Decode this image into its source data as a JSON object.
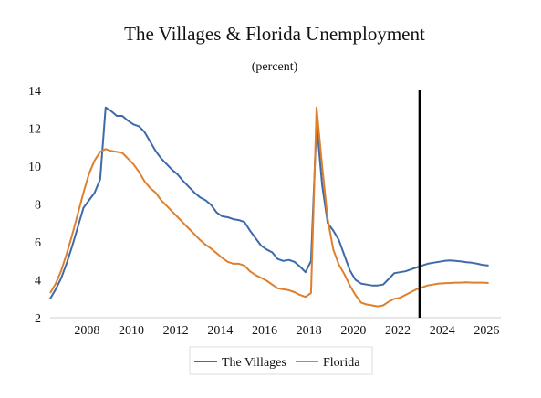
{
  "chart_data": {
    "type": "line",
    "title": "The Villages & Florida Unemployment",
    "subtitle": "(percent)",
    "xlabel": "",
    "ylabel": "",
    "xlim": [
      2007.0,
      2027.3
    ],
    "ylim": [
      2,
      14
    ],
    "x_ticks": [
      2008,
      2010,
      2012,
      2014,
      2016,
      2018,
      2020,
      2022,
      2024,
      2026
    ],
    "y_ticks": [
      2,
      4,
      6,
      8,
      10,
      12,
      14
    ],
    "grid": false,
    "legend_position": "bottom-center",
    "vertical_marker_x": 2023.65,
    "series": [
      {
        "name": "The Villages",
        "color": "#3d6aa8",
        "points": [
          [
            2007.0,
            3.0
          ],
          [
            2007.25,
            3.5
          ],
          [
            2007.5,
            4.1
          ],
          [
            2007.75,
            4.9
          ],
          [
            2008.0,
            5.8
          ],
          [
            2008.25,
            6.8
          ],
          [
            2008.5,
            7.8
          ],
          [
            2008.75,
            8.2
          ],
          [
            2009.0,
            8.6
          ],
          [
            2009.25,
            9.3
          ],
          [
            2009.5,
            13.1
          ],
          [
            2009.75,
            12.9
          ],
          [
            2010.0,
            12.65
          ],
          [
            2010.25,
            12.65
          ],
          [
            2010.5,
            12.4
          ],
          [
            2010.75,
            12.2
          ],
          [
            2011.0,
            12.1
          ],
          [
            2011.25,
            11.8
          ],
          [
            2011.5,
            11.3
          ],
          [
            2011.75,
            10.8
          ],
          [
            2012.0,
            10.4
          ],
          [
            2012.25,
            10.1
          ],
          [
            2012.5,
            9.8
          ],
          [
            2012.75,
            9.55
          ],
          [
            2013.0,
            9.2
          ],
          [
            2013.25,
            8.9
          ],
          [
            2013.5,
            8.6
          ],
          [
            2013.75,
            8.35
          ],
          [
            2014.0,
            8.2
          ],
          [
            2014.25,
            7.95
          ],
          [
            2014.5,
            7.55
          ],
          [
            2014.75,
            7.35
          ],
          [
            2015.0,
            7.3
          ],
          [
            2015.25,
            7.2
          ],
          [
            2015.5,
            7.15
          ],
          [
            2015.75,
            7.05
          ],
          [
            2016.0,
            6.6
          ],
          [
            2016.25,
            6.2
          ],
          [
            2016.5,
            5.8
          ],
          [
            2016.75,
            5.6
          ],
          [
            2017.0,
            5.45
          ],
          [
            2017.25,
            5.1
          ],
          [
            2017.5,
            5.0
          ],
          [
            2017.75,
            5.05
          ],
          [
            2018.0,
            4.95
          ],
          [
            2018.25,
            4.7
          ],
          [
            2018.5,
            4.4
          ],
          [
            2018.75,
            5.0
          ],
          [
            2019.0,
            12.3
          ],
          [
            2019.25,
            9.0
          ],
          [
            2019.5,
            7.0
          ],
          [
            2019.75,
            6.6
          ],
          [
            2020.0,
            6.1
          ],
          [
            2020.25,
            5.3
          ],
          [
            2020.5,
            4.5
          ],
          [
            2020.75,
            4.0
          ],
          [
            2021.0,
            3.8
          ],
          [
            2021.25,
            3.75
          ],
          [
            2021.5,
            3.7
          ],
          [
            2021.75,
            3.7
          ],
          [
            2022.0,
            3.75
          ],
          [
            2022.25,
            4.05
          ],
          [
            2022.5,
            4.35
          ],
          [
            2022.75,
            4.4
          ],
          [
            2023.0,
            4.45
          ],
          [
            2023.25,
            4.55
          ],
          [
            2023.5,
            4.65
          ],
          [
            2023.75,
            4.75
          ],
          [
            2024.0,
            4.85
          ],
          [
            2024.25,
            4.9
          ],
          [
            2024.5,
            4.95
          ],
          [
            2024.75,
            5.0
          ],
          [
            2025.0,
            5.02
          ],
          [
            2025.25,
            5.0
          ],
          [
            2025.5,
            4.97
          ],
          [
            2025.75,
            4.93
          ],
          [
            2026.0,
            4.9
          ],
          [
            2026.25,
            4.85
          ],
          [
            2026.5,
            4.78
          ],
          [
            2026.75,
            4.75
          ]
        ]
      },
      {
        "name": "Florida",
        "color": "#de7f2e",
        "points": [
          [
            2007.0,
            3.3
          ],
          [
            2007.25,
            3.8
          ],
          [
            2007.5,
            4.5
          ],
          [
            2007.75,
            5.4
          ],
          [
            2008.0,
            6.4
          ],
          [
            2008.25,
            7.5
          ],
          [
            2008.5,
            8.6
          ],
          [
            2008.75,
            9.6
          ],
          [
            2009.0,
            10.3
          ],
          [
            2009.25,
            10.75
          ],
          [
            2009.5,
            10.9
          ],
          [
            2009.75,
            10.8
          ],
          [
            2010.0,
            10.75
          ],
          [
            2010.25,
            10.7
          ],
          [
            2010.5,
            10.4
          ],
          [
            2010.75,
            10.1
          ],
          [
            2011.0,
            9.7
          ],
          [
            2011.25,
            9.2
          ],
          [
            2011.5,
            8.85
          ],
          [
            2011.75,
            8.6
          ],
          [
            2012.0,
            8.2
          ],
          [
            2012.25,
            7.9
          ],
          [
            2012.5,
            7.6
          ],
          [
            2012.75,
            7.3
          ],
          [
            2013.0,
            7.0
          ],
          [
            2013.25,
            6.7
          ],
          [
            2013.5,
            6.4
          ],
          [
            2013.75,
            6.1
          ],
          [
            2014.0,
            5.85
          ],
          [
            2014.25,
            5.65
          ],
          [
            2014.5,
            5.4
          ],
          [
            2014.75,
            5.15
          ],
          [
            2015.0,
            4.95
          ],
          [
            2015.25,
            4.85
          ],
          [
            2015.5,
            4.85
          ],
          [
            2015.75,
            4.75
          ],
          [
            2016.0,
            4.45
          ],
          [
            2016.25,
            4.25
          ],
          [
            2016.5,
            4.1
          ],
          [
            2016.75,
            3.95
          ],
          [
            2017.0,
            3.75
          ],
          [
            2017.25,
            3.55
          ],
          [
            2017.5,
            3.5
          ],
          [
            2017.75,
            3.45
          ],
          [
            2018.0,
            3.35
          ],
          [
            2018.25,
            3.2
          ],
          [
            2018.5,
            3.1
          ],
          [
            2018.75,
            3.3
          ],
          [
            2019.0,
            13.1
          ],
          [
            2019.25,
            10.0
          ],
          [
            2019.5,
            7.2
          ],
          [
            2019.75,
            5.6
          ],
          [
            2020.0,
            4.8
          ],
          [
            2020.25,
            4.3
          ],
          [
            2020.5,
            3.7
          ],
          [
            2020.75,
            3.2
          ],
          [
            2021.0,
            2.8
          ],
          [
            2021.25,
            2.7
          ],
          [
            2021.5,
            2.65
          ],
          [
            2021.75,
            2.6
          ],
          [
            2022.0,
            2.65
          ],
          [
            2022.25,
            2.85
          ],
          [
            2022.5,
            3.0
          ],
          [
            2022.75,
            3.05
          ],
          [
            2023.0,
            3.2
          ],
          [
            2023.25,
            3.35
          ],
          [
            2023.5,
            3.5
          ],
          [
            2023.75,
            3.6
          ],
          [
            2024.0,
            3.7
          ],
          [
            2024.25,
            3.75
          ],
          [
            2024.5,
            3.8
          ],
          [
            2024.75,
            3.82
          ],
          [
            2025.0,
            3.83
          ],
          [
            2025.25,
            3.85
          ],
          [
            2025.5,
            3.85
          ],
          [
            2025.75,
            3.87
          ],
          [
            2026.0,
            3.85
          ],
          [
            2026.25,
            3.85
          ],
          [
            2026.5,
            3.85
          ],
          [
            2026.75,
            3.83
          ]
        ]
      }
    ]
  }
}
